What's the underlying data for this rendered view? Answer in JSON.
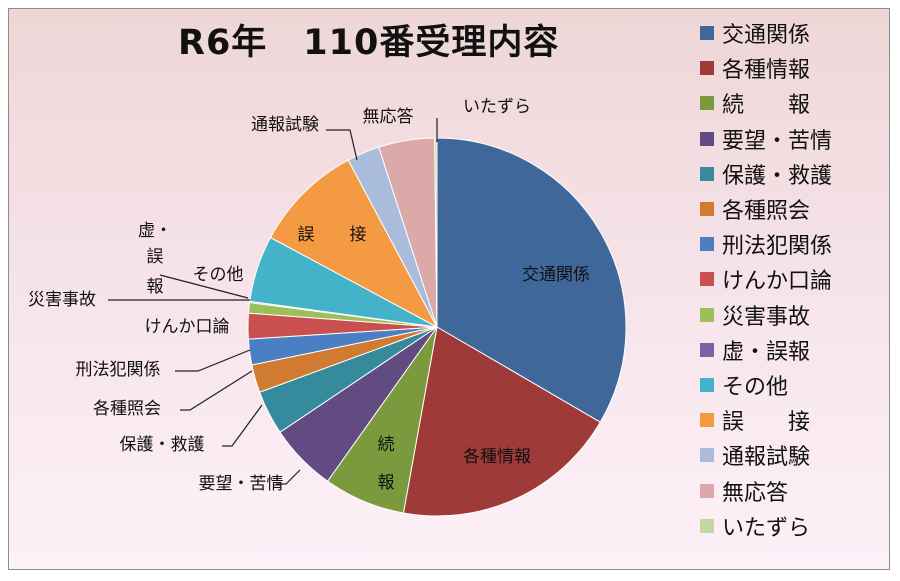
{
  "chart_data": {
    "type": "pie",
    "title": "R6年　110番受理内容",
    "legend_position": "right",
    "start_angle": "12 o'clock, clockwise",
    "slices": [
      {
        "label": "交通関係",
        "value": 33.5,
        "color": "#3f679a"
      },
      {
        "label": "各種情報",
        "value": 19.5,
        "color": "#9e3b39"
      },
      {
        "label": "続　　報",
        "value": 7.0,
        "color": "#7a9a3d"
      },
      {
        "label": "要望・苦情",
        "value": 5.8,
        "color": "#624b82"
      },
      {
        "label": "保護・救護",
        "value": 3.8,
        "color": "#358a9c"
      },
      {
        "label": "各種照会",
        "value": 2.4,
        "color": "#d07b31"
      },
      {
        "label": "刑法犯関係",
        "value": 2.2,
        "color": "#4b7fc4"
      },
      {
        "label": "けんか口論",
        "value": 2.2,
        "color": "#c9504e"
      },
      {
        "label": "災害事故",
        "value": 0.9,
        "color": "#9bbf59"
      },
      {
        "label": "虚・誤報",
        "value": 0.1,
        "color": "#7c62a4"
      },
      {
        "label": "その他",
        "value": 5.7,
        "color": "#44b2c9"
      },
      {
        "label": "誤　　接",
        "value": 9.4,
        "color": "#f49a43"
      },
      {
        "label": "通報試験",
        "value": 2.8,
        "color": "#a9bcdb"
      },
      {
        "label": "無応答",
        "value": 4.8,
        "color": "#dba9a7"
      },
      {
        "label": "いたずら",
        "value": 0.2,
        "color": "#c4d9a1"
      }
    ],
    "inside_labels": {
      "交通関係": "交通関係",
      "各種情報": "各種情報",
      "続": "続",
      "報": "報",
      "誤": "誤",
      "接": "接"
    },
    "outside_labels": {
      "通報試験": "通報試験",
      "無応答": "無応答",
      "いたずら": "いたずら",
      "虚": "虚・",
      "誤": "誤",
      "報": "報",
      "その他": "その他",
      "災害事故": "災害事故",
      "けんか口論": "けんか口論",
      "刑法犯関係": "刑法犯関係",
      "各種照会": "各種照会",
      "保護・救護": "保護・救護",
      "要望・苦情": "要望・苦情"
    }
  }
}
